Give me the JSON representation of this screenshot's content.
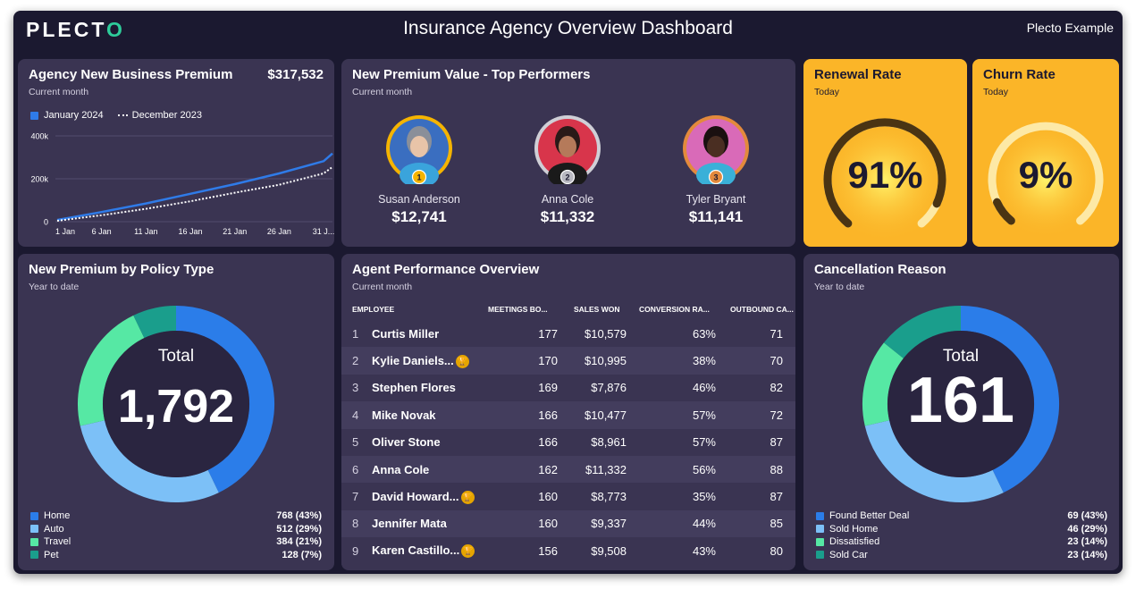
{
  "header": {
    "logo": "PLECT",
    "logo_end": "O",
    "title": "Insurance Agency Overview Dashboard",
    "account": "Plecto Example"
  },
  "business_premium": {
    "title": "Agency New Business Premium",
    "subtitle": "Current month",
    "total": "$317,532",
    "legend": {
      "current": "January 2024",
      "previous": "December 2023"
    },
    "colors": {
      "current": "#2f7be8",
      "previous": "#ffffff"
    },
    "chart_data": {
      "type": "line",
      "title": "Agency New Business Premium",
      "x": [
        1,
        6,
        11,
        16,
        21,
        26,
        31
      ],
      "x_tick_labels": [
        "1 Jan",
        "6 Jan",
        "11 Jan",
        "16 Jan",
        "21 Jan",
        "26 Jan",
        "31 J..."
      ],
      "y_tick_labels": [
        "0",
        "200k",
        "400k"
      ],
      "ylim": [
        0,
        400000
      ],
      "xlim": [
        1,
        32
      ],
      "series": [
        {
          "name": "January 2024",
          "style": "solid",
          "x": [
            1,
            6,
            11,
            16,
            21,
            26,
            31,
            32
          ],
          "values": [
            8000,
            45000,
            85000,
            130000,
            175000,
            225000,
            282000,
            318000
          ]
        },
        {
          "name": "December 2023",
          "style": "dotted",
          "x": [
            1,
            6,
            11,
            16,
            21,
            26,
            31,
            32
          ],
          "values": [
            4000,
            30000,
            60000,
            95000,
            135000,
            172000,
            225000,
            255000
          ]
        }
      ]
    }
  },
  "top_performers": {
    "title": "New Premium Value - Top Performers",
    "subtitle": "Current month",
    "people": [
      {
        "rank": "1",
        "name": "Susan Anderson",
        "amount": "$12,741",
        "ring": "#f5b400",
        "badge": "#f5b400",
        "bg": "#3a6ec0",
        "skin": "#e8c4a8",
        "hair": "#8a8f99",
        "shirt": "#3aa4dc"
      },
      {
        "rank": "2",
        "name": "Anna Cole",
        "amount": "$11,332",
        "ring": "#cfcfd6",
        "badge": "#b8b8c0",
        "bg": "#d8354b",
        "skin": "#b57a5a",
        "hair": "#2a1a18",
        "shirt": "#1a1a1a"
      },
      {
        "rank": "3",
        "name": "Tyler Bryant",
        "amount": "$11,141",
        "ring": "#e38a3c",
        "badge": "#e38a3c",
        "bg": "#d96ab8",
        "skin": "#4a2e22",
        "hair": "#1a1010",
        "shirt": "#3ab0d8"
      }
    ]
  },
  "renewal": {
    "title": "Renewal Rate",
    "subtitle": "Today",
    "value": "91%",
    "percent": 91
  },
  "churn": {
    "title": "Churn Rate",
    "subtitle": "Today",
    "value": "9%",
    "percent": 9
  },
  "policy_type": {
    "title": "New Premium by Policy Type",
    "subtitle": "Year to date",
    "center_label": "Total",
    "total": "1,792",
    "chart_data": {
      "type": "pie",
      "title": "New Premium by Policy Type",
      "categories": [
        "Home",
        "Auto",
        "Travel",
        "Pet"
      ],
      "values": [
        768,
        512,
        384,
        128
      ],
      "display": [
        "768 (43%)",
        "512 (29%)",
        "384 (21%)",
        "128 (7%)"
      ],
      "colors": [
        "#2b7de9",
        "#7cc0f7",
        "#56e8a4",
        "#1a9e8c"
      ]
    }
  },
  "agents": {
    "title": "Agent Performance Overview",
    "subtitle": "Current month",
    "columns": [
      "EMPLOYEE",
      "MEETINGS BO...",
      "SALES WON",
      "CONVERSION RA...",
      "OUTBOUND CA..."
    ],
    "rows": [
      {
        "rank": "1",
        "name": "Curtis Miller",
        "meetings": "177",
        "sales": "$10,579",
        "conversion": "63%",
        "outbound": "71",
        "badge": ""
      },
      {
        "rank": "2",
        "name": "Kylie Daniels...",
        "meetings": "170",
        "sales": "$10,995",
        "conversion": "38%",
        "outbound": "70",
        "badge": "🏆"
      },
      {
        "rank": "3",
        "name": "Stephen Flores",
        "meetings": "169",
        "sales": "$7,876",
        "conversion": "46%",
        "outbound": "82",
        "badge": ""
      },
      {
        "rank": "4",
        "name": "Mike Novak",
        "meetings": "166",
        "sales": "$10,477",
        "conversion": "57%",
        "outbound": "72",
        "badge": ""
      },
      {
        "rank": "5",
        "name": "Oliver Stone",
        "meetings": "166",
        "sales": "$8,961",
        "conversion": "57%",
        "outbound": "87",
        "badge": ""
      },
      {
        "rank": "6",
        "name": "Anna Cole",
        "meetings": "162",
        "sales": "$11,332",
        "conversion": "56%",
        "outbound": "88",
        "badge": ""
      },
      {
        "rank": "7",
        "name": "David Howard...",
        "meetings": "160",
        "sales": "$8,773",
        "conversion": "35%",
        "outbound": "87",
        "badge": "🏆"
      },
      {
        "rank": "8",
        "name": "Jennifer Mata",
        "meetings": "160",
        "sales": "$9,337",
        "conversion": "44%",
        "outbound": "85",
        "badge": ""
      },
      {
        "rank": "9",
        "name": "Karen Castillo...",
        "meetings": "156",
        "sales": "$9,508",
        "conversion": "43%",
        "outbound": "80",
        "badge": "🏆"
      }
    ]
  },
  "cancellation": {
    "title": "Cancellation Reason",
    "subtitle": "Year to date",
    "center_label": "Total",
    "total": "161",
    "chart_data": {
      "type": "pie",
      "title": "Cancellation Reason",
      "categories": [
        "Found Better Deal",
        "Sold Home",
        "Dissatisfied",
        "Sold Car"
      ],
      "values": [
        69,
        46,
        23,
        23
      ],
      "display": [
        "69 (43%)",
        "46 (29%)",
        "23 (14%)",
        "23 (14%)"
      ],
      "colors": [
        "#2b7de9",
        "#7cc0f7",
        "#56e8a4",
        "#1a9e8c"
      ]
    }
  }
}
